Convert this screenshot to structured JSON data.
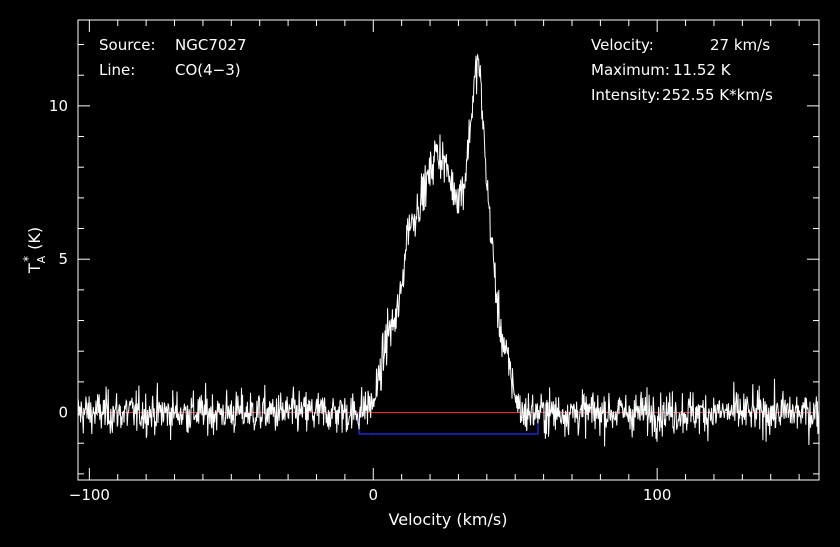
{
  "info": {
    "source_label": "Source:",
    "source_value": "NGC7027",
    "line_label": "Line:",
    "line_value": "CO(4−3)",
    "velocity_label": "Velocity:",
    "velocity_value": "27 km/s",
    "maximum_label": "Maximum:",
    "maximum_value": "11.52 K",
    "intensity_label": "Intensity:",
    "intensity_value": "252.55 K*km/s"
  },
  "colors": {
    "background": "#000000",
    "axes": "#ffffff",
    "spectrum": "#ffffff",
    "baseline": "#ff2020",
    "window": "#2030ff"
  },
  "chart_data": {
    "type": "line",
    "xlabel": "Velocity (km/s)",
    "ylabel_main": "T",
    "ylabel_sup": "*",
    "ylabel_sub": "A",
    "ylabel_unit": "(K)",
    "xlim": [
      -104,
      157
    ],
    "ylim": [
      -2.2,
      12.8
    ],
    "xticks": [
      -100,
      0,
      100
    ],
    "yticks": [
      0,
      5,
      10
    ],
    "baseline_y": 0,
    "integration_window": {
      "x_start": -5,
      "x_end": 58,
      "y": -0.7
    },
    "noise_rms": 0.35,
    "peak": {
      "x": 37,
      "y": 11.52
    },
    "profile": {
      "x": [
        -104,
        -6,
        0,
        3,
        5,
        8,
        10,
        12,
        14,
        16,
        18,
        20,
        22,
        24,
        26,
        28,
        30,
        32,
        34,
        36,
        37,
        38,
        40,
        42,
        44,
        46,
        48,
        50,
        52,
        157
      ],
      "y": [
        0,
        0,
        0.3,
        1.5,
        2.6,
        3.0,
        4.0,
        6.0,
        6.3,
        6.8,
        7.3,
        7.8,
        8.5,
        8.4,
        7.9,
        7.3,
        7.1,
        7.4,
        9.2,
        11.0,
        11.52,
        10.4,
        7.5,
        5.3,
        3.2,
        2.2,
        1.4,
        0.6,
        0,
        0
      ]
    }
  }
}
